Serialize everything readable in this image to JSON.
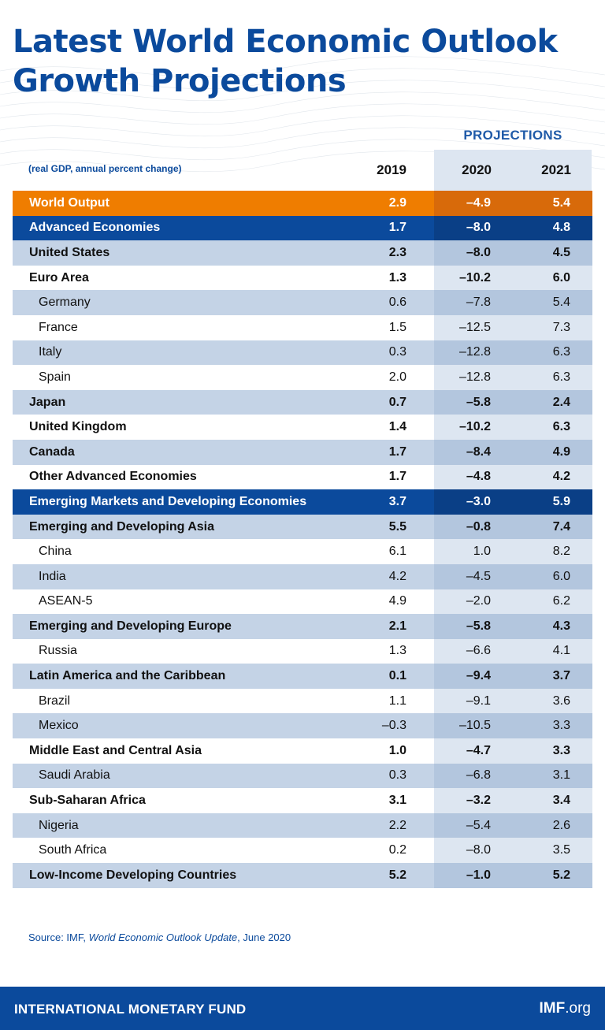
{
  "title_line1": "Latest World Economic Outlook",
  "title_line2": "Growth Projections",
  "projections_label": "PROJECTIONS",
  "units_note": "(real GDP, annual percent change)",
  "columns": [
    "2019",
    "2020",
    "2021"
  ],
  "colors": {
    "navy": "#0b4a9c",
    "orange": "#ef7d00",
    "light_blue": "#c4d3e6",
    "projection_shade": "#dde6f1"
  },
  "chart_data": {
    "type": "table",
    "title": "Latest World Economic Outlook Growth Projections",
    "subtitle": "(real GDP, annual percent change)",
    "columns": [
      "2019",
      "2020",
      "2021"
    ],
    "projection_columns": [
      "2020",
      "2021"
    ],
    "rows": [
      {
        "label": "World Output",
        "values": [
          "2.9",
          "–4.9",
          "5.4"
        ],
        "style": "orange"
      },
      {
        "label": "Advanced Economies",
        "values": [
          "1.7",
          "–8.0",
          "4.8"
        ],
        "style": "navy"
      },
      {
        "label": "United States",
        "values": [
          "2.3",
          "–8.0",
          "4.5"
        ],
        "style": "blue"
      },
      {
        "label": "Euro Area",
        "values": [
          "1.3",
          "–10.2",
          "6.0"
        ],
        "style": "white"
      },
      {
        "label": "Germany",
        "values": [
          "0.6",
          "–7.8",
          "5.4"
        ],
        "style": "blue",
        "sub": true
      },
      {
        "label": "France",
        "values": [
          "1.5",
          "–12.5",
          "7.3"
        ],
        "style": "white",
        "sub": true
      },
      {
        "label": "Italy",
        "values": [
          "0.3",
          "–12.8",
          "6.3"
        ],
        "style": "blue",
        "sub": true
      },
      {
        "label": "Spain",
        "values": [
          "2.0",
          "–12.8",
          "6.3"
        ],
        "style": "white",
        "sub": true
      },
      {
        "label": "Japan",
        "values": [
          "0.7",
          "–5.8",
          "2.4"
        ],
        "style": "blue"
      },
      {
        "label": "United Kingdom",
        "values": [
          "1.4",
          "–10.2",
          "6.3"
        ],
        "style": "white"
      },
      {
        "label": "Canada",
        "values": [
          "1.7",
          "–8.4",
          "4.9"
        ],
        "style": "blue"
      },
      {
        "label": "Other Advanced Economies",
        "values": [
          "1.7",
          "–4.8",
          "4.2"
        ],
        "style": "white"
      },
      {
        "label": "Emerging Markets and Developing Economies",
        "values": [
          "3.7",
          "–3.0",
          "5.9"
        ],
        "style": "navy"
      },
      {
        "label": "Emerging and Developing Asia",
        "values": [
          "5.5",
          "–0.8",
          "7.4"
        ],
        "style": "blue"
      },
      {
        "label": "China",
        "values": [
          "6.1",
          "1.0",
          "8.2"
        ],
        "style": "white",
        "sub": true
      },
      {
        "label": "India",
        "values": [
          "4.2",
          "–4.5",
          "6.0"
        ],
        "style": "blue",
        "sub": true
      },
      {
        "label": "ASEAN-5",
        "values": [
          "4.9",
          "–2.0",
          "6.2"
        ],
        "style": "white",
        "sub": true
      },
      {
        "label": "Emerging and Developing Europe",
        "values": [
          "2.1",
          "–5.8",
          "4.3"
        ],
        "style": "blue"
      },
      {
        "label": "Russia",
        "values": [
          "1.3",
          "–6.6",
          "4.1"
        ],
        "style": "white",
        "sub": true
      },
      {
        "label": "Latin America and the Caribbean",
        "values": [
          "0.1",
          "–9.4",
          "3.7"
        ],
        "style": "blue"
      },
      {
        "label": "Brazil",
        "values": [
          "1.1",
          "–9.1",
          "3.6"
        ],
        "style": "white",
        "sub": true
      },
      {
        "label": "Mexico",
        "values": [
          "–0.3",
          "–10.5",
          "3.3"
        ],
        "style": "blue",
        "sub": true
      },
      {
        "label": "Middle East and Central Asia",
        "values": [
          "1.0",
          "–4.7",
          "3.3"
        ],
        "style": "white"
      },
      {
        "label": "Saudi Arabia",
        "values": [
          "0.3",
          "–6.8",
          "3.1"
        ],
        "style": "blue",
        "sub": true
      },
      {
        "label": "Sub-Saharan Africa",
        "values": [
          "3.1",
          "–3.2",
          "3.4"
        ],
        "style": "white"
      },
      {
        "label": "Nigeria",
        "values": [
          "2.2",
          "–5.4",
          "2.6"
        ],
        "style": "blue",
        "sub": true
      },
      {
        "label": "South Africa",
        "values": [
          "0.2",
          "–8.0",
          "3.5"
        ],
        "style": "white",
        "sub": true
      },
      {
        "label": "Low-Income Developing Countries",
        "values": [
          "5.2",
          "–1.0",
          "5.2"
        ],
        "style": "blue"
      }
    ]
  },
  "source": {
    "prefix": "Source: IMF, ",
    "publication": "World Economic Outlook Update",
    "suffix": ", June 2020"
  },
  "footer": {
    "org": "INTERNATIONAL MONETARY FUND",
    "site_bold": "IMF",
    "site_rest": ".org"
  }
}
